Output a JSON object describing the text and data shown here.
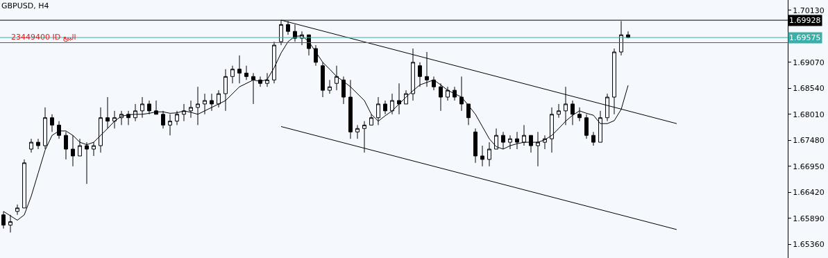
{
  "chart_data": {
    "type": "candlestick",
    "title": "GBPUSD, H4",
    "categories": [
      null,
      null,
      null,
      null,
      null,
      null,
      null,
      null,
      null,
      null,
      null,
      null,
      null,
      null,
      null,
      null,
      null,
      null,
      null,
      null,
      null,
      null,
      null,
      null,
      null,
      null,
      null,
      null,
      null,
      null,
      null,
      null,
      null,
      null,
      null,
      null,
      null,
      null,
      null,
      null,
      null,
      null,
      null,
      null,
      null,
      null,
      null,
      null,
      null,
      null,
      null,
      null,
      null,
      null,
      null,
      null,
      null,
      null,
      null,
      null,
      null,
      null,
      null,
      null,
      null,
      null,
      null,
      null,
      null,
      null,
      null,
      null,
      null,
      null,
      null,
      null,
      null,
      null,
      null,
      null,
      null,
      null,
      null,
      null,
      null,
      null,
      null,
      null,
      null,
      null,
      null,
      null,
      null,
      null,
      null,
      null,
      null,
      null
    ],
    "color": "#000000",
    "ohlc": [
      [
        1.6596,
        1.6603,
        1.6568,
        1.6575
      ],
      [
        1.6575,
        1.6596,
        1.656,
        1.6582
      ],
      [
        1.6603,
        1.6617,
        1.6596,
        1.661
      ],
      [
        1.661,
        1.6709,
        1.661,
        1.6702
      ],
      [
        1.673,
        1.6751,
        1.6723,
        1.6744
      ],
      [
        1.6744,
        1.6751,
        1.673,
        1.6737
      ],
      [
        1.6737,
        1.6815,
        1.673,
        1.6794
      ],
      [
        1.6794,
        1.6801,
        1.6765,
        1.6779
      ],
      [
        1.6779,
        1.6787,
        1.6751,
        1.6758
      ],
      [
        1.6758,
        1.6765,
        1.6709,
        1.673
      ],
      [
        1.673,
        1.6758,
        1.6695,
        1.6716
      ],
      [
        1.6716,
        1.6751,
        1.6716,
        1.6737
      ],
      [
        1.6737,
        1.6744,
        1.6659,
        1.673
      ],
      [
        1.673,
        1.6744,
        1.6716,
        1.6737
      ],
      [
        1.6737,
        1.6815,
        1.6723,
        1.6794
      ],
      [
        1.6794,
        1.6836,
        1.6772,
        1.6787
      ],
      [
        1.6787,
        1.6808,
        1.6772,
        1.6794
      ],
      [
        1.6794,
        1.6808,
        1.6779,
        1.6801
      ],
      [
        1.6801,
        1.6808,
        1.6779,
        1.6794
      ],
      [
        1.6794,
        1.6822,
        1.6787,
        1.6808
      ],
      [
        1.6808,
        1.6836,
        1.6794,
        1.6822
      ],
      [
        1.6822,
        1.6829,
        1.6801,
        1.6808
      ],
      [
        1.6808,
        1.6829,
        1.6801,
        1.6801
      ],
      [
        1.6801,
        1.6808,
        1.6772,
        1.6779
      ],
      [
        1.6779,
        1.6801,
        1.6758,
        1.6787
      ],
      [
        1.6787,
        1.6808,
        1.6779,
        1.6801
      ],
      [
        1.6801,
        1.6822,
        1.6787,
        1.6808
      ],
      [
        1.6808,
        1.6829,
        1.6794,
        1.6815
      ],
      [
        1.6815,
        1.6857,
        1.6779,
        1.6822
      ],
      [
        1.6822,
        1.6843,
        1.6801,
        1.6829
      ],
      [
        1.6829,
        1.6843,
        1.6808,
        1.6822
      ],
      [
        1.6822,
        1.685,
        1.6815,
        1.6843
      ],
      [
        1.6843,
        1.6893,
        1.6808,
        1.6878
      ],
      [
        1.6878,
        1.69,
        1.6864,
        1.6893
      ],
      [
        1.6893,
        1.6921,
        1.6864,
        1.6885
      ],
      [
        1.6885,
        1.69,
        1.6871,
        1.6878
      ],
      [
        1.6878,
        1.6885,
        1.6822,
        1.6871
      ],
      [
        1.6871,
        1.6878,
        1.6857,
        1.6864
      ],
      [
        1.6864,
        1.6885,
        1.6857,
        1.6871
      ],
      [
        1.6871,
        1.6949,
        1.6864,
        1.6942
      ],
      [
        1.6949,
        1.6993,
        1.6942,
        1.6984
      ],
      [
        1.6984,
        1.6991,
        1.6963,
        1.697
      ],
      [
        1.697,
        1.6984,
        1.6949,
        1.6956
      ],
      [
        1.6956,
        1.697,
        1.6942,
        1.6963
      ],
      [
        1.6963,
        1.6963,
        1.6921,
        1.6935
      ],
      [
        1.6935,
        1.6942,
        1.69,
        1.6907
      ],
      [
        1.69,
        1.6907,
        1.6836,
        1.685
      ],
      [
        1.685,
        1.6871,
        1.6843,
        1.6857
      ],
      [
        1.6864,
        1.69,
        1.685,
        1.6878
      ],
      [
        1.6871,
        1.6878,
        1.6822,
        1.6836
      ],
      [
        1.6836,
        1.6871,
        1.6751,
        1.6765
      ],
      [
        1.6765,
        1.6779,
        1.6751,
        1.6772
      ],
      [
        1.6772,
        1.6787,
        1.6723,
        1.6779
      ],
      [
        1.6779,
        1.6801,
        1.6779,
        1.6794
      ],
      [
        1.6794,
        1.6836,
        1.6779,
        1.6822
      ],
      [
        1.6822,
        1.6829,
        1.6801,
        1.6808
      ],
      [
        1.6808,
        1.6843,
        1.6801,
        1.6829
      ],
      [
        1.6829,
        1.6864,
        1.6801,
        1.6822
      ],
      [
        1.6822,
        1.685,
        1.6822,
        1.6843
      ],
      [
        1.6843,
        1.6935,
        1.6829,
        1.6907
      ],
      [
        1.69,
        1.6907,
        1.6857,
        1.6878
      ],
      [
        1.6878,
        1.6928,
        1.6857,
        1.6871
      ],
      [
        1.6871,
        1.6878,
        1.685,
        1.6857
      ],
      [
        1.6857,
        1.6864,
        1.6808,
        1.6836
      ],
      [
        1.6836,
        1.6857,
        1.6829,
        1.685
      ],
      [
        1.685,
        1.6857,
        1.6829,
        1.6836
      ],
      [
        1.6836,
        1.6878,
        1.6808,
        1.6822
      ],
      [
        1.6822,
        1.6822,
        1.6779,
        1.6794
      ],
      [
        1.6765,
        1.6772,
        1.6702,
        1.6716
      ],
      [
        1.6716,
        1.6737,
        1.6695,
        1.6709
      ],
      [
        1.6709,
        1.6744,
        1.6695,
        1.673
      ],
      [
        1.673,
        1.6772,
        1.673,
        1.6758
      ],
      [
        1.6758,
        1.6765,
        1.673,
        1.6744
      ],
      [
        1.6744,
        1.6758,
        1.673,
        1.6751
      ],
      [
        1.6751,
        1.6765,
        1.673,
        1.6744
      ],
      [
        1.6744,
        1.6779,
        1.6737,
        1.6758
      ],
      [
        1.6758,
        1.6758,
        1.6723,
        1.6737
      ],
      [
        1.6737,
        1.6765,
        1.6695,
        1.6744
      ],
      [
        1.6744,
        1.6758,
        1.673,
        1.6751
      ],
      [
        1.6751,
        1.6815,
        1.6723,
        1.6801
      ],
      [
        1.6801,
        1.6822,
        1.6794,
        1.6808
      ],
      [
        1.6808,
        1.6857,
        1.6779,
        1.6822
      ],
      [
        1.6822,
        1.6829,
        1.6779,
        1.6801
      ],
      [
        1.6801,
        1.6815,
        1.6787,
        1.6794
      ],
      [
        1.6794,
        1.6801,
        1.6751,
        1.6758
      ],
      [
        1.6758,
        1.6765,
        1.6737,
        1.6744
      ],
      [
        1.6744,
        1.6808,
        1.6744,
        1.6794
      ],
      [
        1.6794,
        1.6843,
        1.6787,
        1.6836
      ],
      [
        1.6836,
        1.6935,
        1.6801,
        1.6928
      ],
      [
        1.6928,
        1.6991,
        1.6921,
        1.6963
      ],
      [
        1.6963,
        1.697,
        1.6956,
        1.69575
      ],
      null,
      null,
      null,
      null,
      null,
      null,
      null
    ],
    "series": [
      {
        "type": "line",
        "color": "#000000",
        "values": [
          1.6603,
          1.6594,
          1.6585,
          1.6596,
          1.6634,
          1.6681,
          1.6728,
          1.6758,
          1.6767,
          1.6767,
          1.6758,
          1.6744,
          1.6739,
          1.6744,
          1.6758,
          1.6772,
          1.6787,
          1.6797,
          1.68,
          1.6801,
          1.6801,
          1.6803,
          1.6806,
          1.6806,
          1.6803,
          1.6804,
          1.6808,
          1.6805,
          1.6801,
          1.6808,
          1.6815,
          1.6822,
          1.6829,
          1.6843,
          1.6857,
          1.6864,
          1.6871,
          1.6868,
          1.6872,
          1.6896,
          1.6926,
          1.6949,
          1.696,
          1.6961,
          1.6949,
          1.6928,
          1.6907,
          1.6893,
          1.6878,
          1.6868,
          1.6857,
          1.6843,
          1.6829,
          1.6801,
          1.6787,
          1.6798,
          1.6808,
          1.6822,
          1.6836,
          1.6849,
          1.6861,
          1.6866,
          1.6871,
          1.6861,
          1.685,
          1.6843,
          1.6836,
          1.6819,
          1.6801,
          1.6776,
          1.6751,
          1.6735,
          1.673,
          1.6737,
          1.6741,
          1.6744,
          1.6744,
          1.6744,
          1.6749,
          1.6758,
          1.6772,
          1.6787,
          1.6799,
          1.6808,
          1.6803,
          1.6799,
          1.6782,
          1.6782,
          1.6788,
          1.6811,
          1.686,
          null,
          null,
          null,
          null,
          null,
          null,
          null
        ]
      },
      {
        "type": "line",
        "color": "#000000",
        "values": [
          null,
          null,
          null,
          null,
          null,
          null,
          null,
          null,
          null,
          null,
          null,
          null,
          null,
          null,
          null,
          null,
          null,
          null,
          null,
          null,
          null,
          null,
          null,
          null,
          null,
          null,
          null,
          null,
          null,
          null,
          null,
          null,
          null,
          null,
          null,
          null,
          null,
          null,
          null,
          null,
          1.6993,
          null,
          null,
          null,
          null,
          null,
          null,
          null,
          null,
          null,
          null,
          null,
          null,
          null,
          null,
          null,
          null,
          null,
          null,
          null,
          null,
          null,
          null,
          null,
          null,
          null,
          null,
          null,
          null,
          null,
          null,
          null,
          null,
          null,
          null,
          null,
          null,
          null,
          null,
          null,
          null,
          null,
          null,
          null,
          null,
          null,
          null,
          null,
          null,
          null,
          null,
          null,
          null,
          null,
          null,
          null,
          null,
          1.6782
        ]
      },
      {
        "type": "line",
        "color": "#000000",
        "values": [
          null,
          null,
          null,
          null,
          null,
          null,
          null,
          null,
          null,
          null,
          null,
          null,
          null,
          null,
          null,
          null,
          null,
          null,
          null,
          null,
          null,
          null,
          null,
          null,
          null,
          null,
          null,
          null,
          null,
          null,
          null,
          null,
          null,
          null,
          null,
          null,
          null,
          null,
          null,
          null,
          1.6776,
          null,
          null,
          null,
          null,
          null,
          null,
          null,
          null,
          null,
          null,
          null,
          null,
          null,
          null,
          null,
          null,
          null,
          null,
          null,
          null,
          null,
          null,
          null,
          null,
          null,
          null,
          null,
          null,
          null,
          null,
          null,
          null,
          null,
          null,
          null,
          null,
          null,
          null,
          null,
          null,
          null,
          null,
          null,
          null,
          null,
          null,
          null,
          null,
          null,
          null,
          null,
          null,
          null,
          null,
          null,
          null,
          1.6566
        ]
      }
    ],
    "ylim": [
      1.6508,
      1.7034
    ],
    "yticks": [
      {
        "value": 1.7013,
        "label": "1.70130"
      },
      {
        "value": 1.6947,
        "label": null
      },
      {
        "value": 1.6907,
        "label": "1.69070"
      },
      {
        "value": 1.6854,
        "label": "1.68540"
      },
      {
        "value": 1.6801,
        "label": "1.68010"
      },
      {
        "value": 1.6748,
        "label": "1.67480"
      },
      {
        "value": 1.6695,
        "label": "1.66950"
      },
      {
        "value": 1.6642,
        "label": "1.66420"
      },
      {
        "value": 1.6589,
        "label": "1.65890"
      },
      {
        "value": 1.6536,
        "label": "1.65360"
      }
    ],
    "ref_lines": [
      {
        "axis": "y",
        "value": 1.69928,
        "label": "1.69928",
        "color": "#000000"
      },
      {
        "axis": "y",
        "value": 1.69575,
        "label": "1.69575",
        "color": "#3aafa9"
      },
      {
        "axis": "y",
        "value": 1.6947,
        "label": "23449400 ID البيع",
        "color": "#e02020"
      }
    ],
    "tick_labels": "y",
    "grid": false
  }
}
